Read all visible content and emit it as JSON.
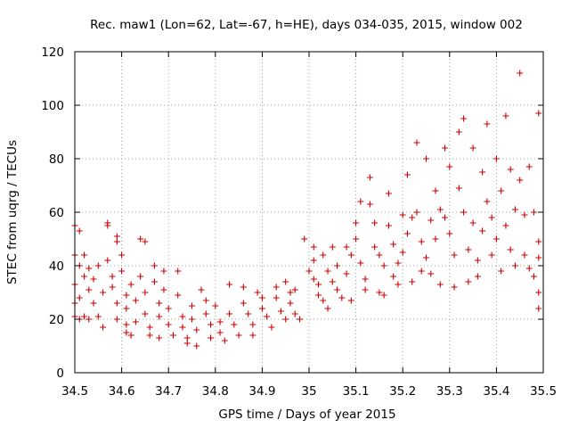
{
  "chart_data": {
    "type": "scatter",
    "title": "Rec. maw1 (Lon=62, Lat=-67, h=HE), days 034-035, 2015, window 002",
    "xlabel": "GPS time / Days of year 2015",
    "ylabel": "STEC from uqrg / TECUs",
    "xlim": [
      34.5,
      35.5
    ],
    "ylim": [
      0,
      120
    ],
    "xticks": [
      "34.5",
      "34.6",
      "34.7",
      "34.8",
      "34.9",
      "35",
      "35.1",
      "35.2",
      "35.3",
      "35.4",
      "35.5"
    ],
    "yticks": [
      "0",
      "20",
      "40",
      "60",
      "80",
      "100",
      "120"
    ],
    "grid": true,
    "marker": "plus",
    "color": "#cc0000",
    "series": [
      {
        "points": [
          [
            34.5,
            55
          ],
          [
            34.51,
            53
          ],
          [
            34.5,
            44
          ],
          [
            34.51,
            40
          ],
          [
            34.52,
            36
          ],
          [
            34.5,
            33
          ],
          [
            34.51,
            28
          ],
          [
            34.5,
            26
          ],
          [
            34.5,
            21
          ],
          [
            34.51,
            20
          ],
          [
            34.52,
            21
          ],
          [
            34.53,
            20
          ],
          [
            34.52,
            44
          ],
          [
            34.53,
            39
          ],
          [
            34.54,
            35
          ],
          [
            34.53,
            31
          ],
          [
            34.54,
            26
          ],
          [
            34.55,
            21
          ],
          [
            34.55,
            40
          ],
          [
            34.56,
            30
          ],
          [
            34.56,
            17
          ],
          [
            34.57,
            56
          ],
          [
            34.57,
            55
          ],
          [
            34.57,
            42
          ],
          [
            34.58,
            36
          ],
          [
            34.58,
            32
          ],
          [
            34.59,
            26
          ],
          [
            34.59,
            20
          ],
          [
            34.59,
            51
          ],
          [
            34.59,
            49
          ],
          [
            34.6,
            44
          ],
          [
            34.6,
            38
          ],
          [
            34.61,
            29
          ],
          [
            34.61,
            24
          ],
          [
            34.61,
            18
          ],
          [
            34.61,
            15
          ],
          [
            34.62,
            14
          ],
          [
            34.62,
            33
          ],
          [
            34.63,
            27
          ],
          [
            34.63,
            19
          ],
          [
            34.64,
            50
          ],
          [
            34.65,
            49
          ],
          [
            34.64,
            36
          ],
          [
            34.65,
            30
          ],
          [
            34.65,
            22
          ],
          [
            34.66,
            17
          ],
          [
            34.66,
            14
          ],
          [
            34.67,
            40
          ],
          [
            34.67,
            34
          ],
          [
            34.68,
            26
          ],
          [
            34.68,
            21
          ],
          [
            34.68,
            13
          ],
          [
            34.69,
            38
          ],
          [
            34.69,
            31
          ],
          [
            34.7,
            24
          ],
          [
            34.7,
            18
          ],
          [
            34.71,
            14
          ],
          [
            34.72,
            38
          ],
          [
            34.72,
            29
          ],
          [
            34.73,
            21
          ],
          [
            34.73,
            17
          ],
          [
            34.74,
            13
          ],
          [
            34.74,
            11
          ],
          [
            34.75,
            25
          ],
          [
            34.75,
            20
          ],
          [
            34.76,
            16
          ],
          [
            34.76,
            10
          ],
          [
            34.77,
            31
          ],
          [
            34.78,
            27
          ],
          [
            34.78,
            22
          ],
          [
            34.79,
            18
          ],
          [
            34.79,
            13
          ],
          [
            34.8,
            25
          ],
          [
            34.81,
            19
          ],
          [
            34.81,
            15
          ],
          [
            34.82,
            12
          ],
          [
            34.83,
            33
          ],
          [
            34.83,
            22
          ],
          [
            34.84,
            18
          ],
          [
            34.85,
            14
          ],
          [
            34.86,
            32
          ],
          [
            34.86,
            26
          ],
          [
            34.87,
            22
          ],
          [
            34.88,
            18
          ],
          [
            34.88,
            14
          ],
          [
            34.89,
            30
          ],
          [
            34.9,
            28
          ],
          [
            34.9,
            24
          ],
          [
            34.91,
            21
          ],
          [
            34.92,
            17
          ],
          [
            34.93,
            32
          ],
          [
            34.93,
            28
          ],
          [
            34.94,
            23
          ],
          [
            34.95,
            34
          ],
          [
            34.95,
            20
          ],
          [
            34.96,
            30
          ],
          [
            34.96,
            26
          ],
          [
            34.97,
            31
          ],
          [
            34.97,
            22
          ],
          [
            34.98,
            20
          ],
          [
            34.99,
            50
          ],
          [
            35.0,
            38
          ],
          [
            35.01,
            47
          ],
          [
            35.01,
            42
          ],
          [
            35.01,
            35
          ],
          [
            35.02,
            33
          ],
          [
            35.02,
            29
          ],
          [
            35.03,
            44
          ],
          [
            35.03,
            27
          ],
          [
            35.04,
            38
          ],
          [
            35.04,
            24
          ],
          [
            35.05,
            47
          ],
          [
            35.05,
            34
          ],
          [
            35.06,
            40
          ],
          [
            35.06,
            31
          ],
          [
            35.07,
            28
          ],
          [
            35.08,
            47
          ],
          [
            35.08,
            37
          ],
          [
            35.09,
            44
          ],
          [
            35.09,
            27
          ],
          [
            35.1,
            56
          ],
          [
            35.1,
            50
          ],
          [
            35.11,
            64
          ],
          [
            35.11,
            41
          ],
          [
            35.12,
            35
          ],
          [
            35.12,
            31
          ],
          [
            35.13,
            73
          ],
          [
            35.13,
            63
          ],
          [
            35.14,
            56
          ],
          [
            35.14,
            47
          ],
          [
            35.15,
            44
          ],
          [
            35.15,
            30
          ],
          [
            35.16,
            40
          ],
          [
            35.16,
            29
          ],
          [
            35.17,
            67
          ],
          [
            35.17,
            55
          ],
          [
            35.18,
            48
          ],
          [
            35.18,
            36
          ],
          [
            35.19,
            41
          ],
          [
            35.19,
            33
          ],
          [
            35.2,
            59
          ],
          [
            35.2,
            45
          ],
          [
            35.21,
            74
          ],
          [
            35.21,
            52
          ],
          [
            35.22,
            58
          ],
          [
            35.22,
            34
          ],
          [
            35.23,
            86
          ],
          [
            35.23,
            60
          ],
          [
            35.24,
            49
          ],
          [
            35.24,
            38
          ],
          [
            35.25,
            80
          ],
          [
            35.25,
            43
          ],
          [
            35.26,
            57
          ],
          [
            35.26,
            37
          ],
          [
            35.27,
            68
          ],
          [
            35.27,
            50
          ],
          [
            35.28,
            61
          ],
          [
            35.28,
            33
          ],
          [
            35.29,
            84
          ],
          [
            35.29,
            58
          ],
          [
            35.3,
            77
          ],
          [
            35.3,
            52
          ],
          [
            35.31,
            44
          ],
          [
            35.31,
            32
          ],
          [
            35.32,
            90
          ],
          [
            35.32,
            69
          ],
          [
            35.33,
            95
          ],
          [
            35.33,
            60
          ],
          [
            35.34,
            46
          ],
          [
            35.34,
            34
          ],
          [
            35.35,
            84
          ],
          [
            35.35,
            56
          ],
          [
            35.36,
            42
          ],
          [
            35.36,
            36
          ],
          [
            35.37,
            75
          ],
          [
            35.37,
            53
          ],
          [
            35.38,
            93
          ],
          [
            35.38,
            64
          ],
          [
            35.39,
            58
          ],
          [
            35.39,
            44
          ],
          [
            35.4,
            80
          ],
          [
            35.4,
            50
          ],
          [
            35.41,
            68
          ],
          [
            35.41,
            38
          ],
          [
            35.42,
            96
          ],
          [
            35.42,
            55
          ],
          [
            35.43,
            76
          ],
          [
            35.43,
            46
          ],
          [
            35.44,
            61
          ],
          [
            35.44,
            40
          ],
          [
            35.45,
            112
          ],
          [
            35.45,
            72
          ],
          [
            35.46,
            59
          ],
          [
            35.46,
            44
          ],
          [
            35.47,
            77
          ],
          [
            35.47,
            39
          ],
          [
            35.48,
            60
          ],
          [
            35.48,
            36
          ],
          [
            35.49,
            97
          ],
          [
            35.49,
            49
          ],
          [
            35.49,
            43
          ],
          [
            35.49,
            30
          ],
          [
            35.49,
            24
          ]
        ]
      }
    ]
  }
}
